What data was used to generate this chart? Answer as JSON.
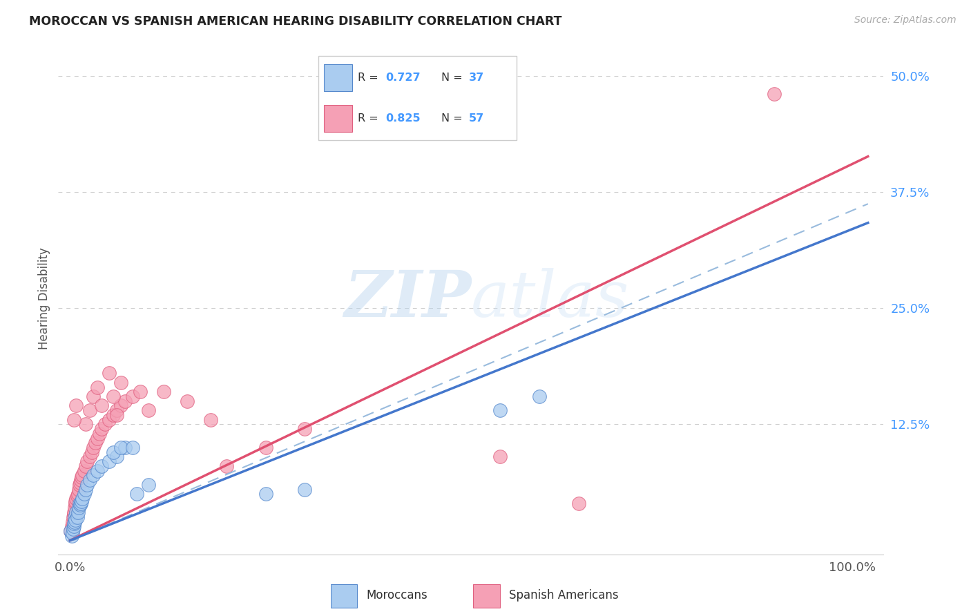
{
  "title": "MOROCCAN VS SPANISH AMERICAN HEARING DISABILITY CORRELATION CHART",
  "source": "Source: ZipAtlas.com",
  "ylabel": "Hearing Disability",
  "legend_r1": "R = 0.727",
  "legend_n1": "N = 37",
  "legend_r2": "R = 0.825",
  "legend_n2": "N = 57",
  "watermark_top": "ZIP",
  "watermark_bot": "atlas",
  "moroccan_color": "#aaccf0",
  "moroccan_edge": "#5588cc",
  "spanish_color": "#f5a0b5",
  "spanish_edge": "#e06080",
  "moroccan_line_color": "#4477cc",
  "spanish_line_color": "#e05070",
  "dashed_line_color": "#99bbdd",
  "background": "#ffffff",
  "pink_line_slope": 0.405,
  "pink_line_intercept": 0.0,
  "blue_line_slope": 0.335,
  "blue_line_intercept": 0.0,
  "dash_line_slope": 0.355,
  "dash_line_intercept": 0.0,
  "moroccan_scatter_x": [
    0.001,
    0.002,
    0.003,
    0.004,
    0.005,
    0.005,
    0.006,
    0.006,
    0.007,
    0.008,
    0.009,
    0.01,
    0.011,
    0.012,
    0.013,
    0.014,
    0.015,
    0.016,
    0.018,
    0.02,
    0.022,
    0.025,
    0.03,
    0.035,
    0.04,
    0.05,
    0.06,
    0.055,
    0.07,
    0.065,
    0.08,
    0.085,
    0.1,
    0.25,
    0.3,
    0.55,
    0.6
  ],
  "moroccan_scatter_y": [
    0.01,
    0.005,
    0.008,
    0.012,
    0.015,
    0.018,
    0.02,
    0.025,
    0.022,
    0.03,
    0.025,
    0.03,
    0.035,
    0.04,
    0.038,
    0.04,
    0.042,
    0.045,
    0.05,
    0.055,
    0.06,
    0.065,
    0.07,
    0.075,
    0.08,
    0.085,
    0.09,
    0.095,
    0.1,
    0.1,
    0.1,
    0.05,
    0.06,
    0.05,
    0.055,
    0.14,
    0.155
  ],
  "spanish_scatter_x": [
    0.001,
    0.002,
    0.003,
    0.004,
    0.005,
    0.005,
    0.006,
    0.007,
    0.007,
    0.008,
    0.009,
    0.01,
    0.011,
    0.012,
    0.013,
    0.014,
    0.015,
    0.016,
    0.018,
    0.02,
    0.022,
    0.025,
    0.028,
    0.03,
    0.032,
    0.035,
    0.038,
    0.04,
    0.045,
    0.05,
    0.055,
    0.06,
    0.065,
    0.07,
    0.08,
    0.09,
    0.1,
    0.12,
    0.15,
    0.18,
    0.02,
    0.025,
    0.03,
    0.035,
    0.04,
    0.05,
    0.055,
    0.06,
    0.065,
    0.25,
    0.3,
    0.2,
    0.55,
    0.65,
    0.9,
    0.005,
    0.008
  ],
  "spanish_scatter_y": [
    0.01,
    0.015,
    0.02,
    0.025,
    0.028,
    0.03,
    0.035,
    0.04,
    0.042,
    0.045,
    0.048,
    0.05,
    0.055,
    0.06,
    0.062,
    0.065,
    0.068,
    0.07,
    0.075,
    0.08,
    0.085,
    0.09,
    0.095,
    0.1,
    0.105,
    0.11,
    0.115,
    0.12,
    0.125,
    0.13,
    0.135,
    0.14,
    0.145,
    0.15,
    0.155,
    0.16,
    0.14,
    0.16,
    0.15,
    0.13,
    0.125,
    0.14,
    0.155,
    0.165,
    0.145,
    0.18,
    0.155,
    0.135,
    0.17,
    0.1,
    0.12,
    0.08,
    0.09,
    0.04,
    0.48,
    0.13,
    0.145
  ]
}
